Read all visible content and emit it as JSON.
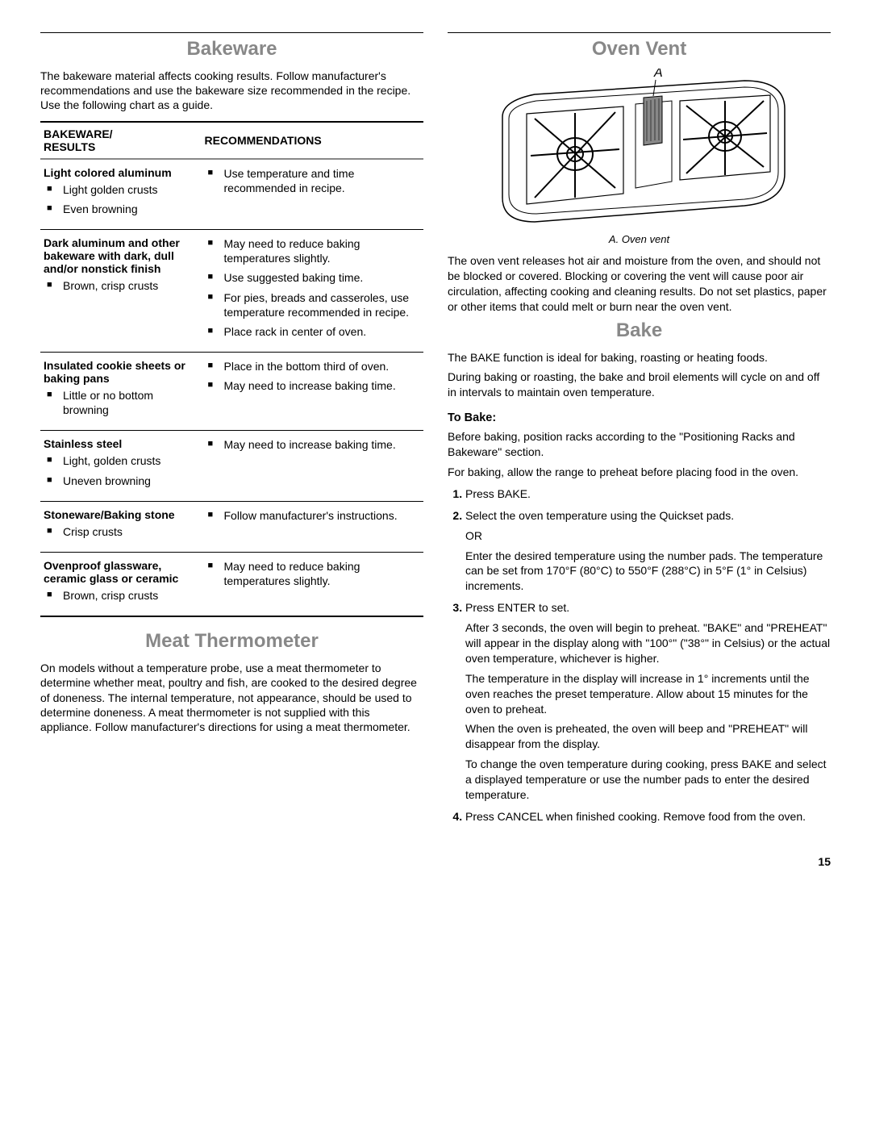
{
  "left": {
    "bakeware_title": "Bakeware",
    "bakeware_intro": "The bakeware material affects cooking results. Follow manufacturer's recommendations and use the bakeware size recommended in the recipe. Use the following chart as a guide.",
    "table_headers": {
      "col1": "BAKEWARE/\nRESULTS",
      "col2": "RECOMMENDATIONS"
    },
    "rows": [
      {
        "material": "Light colored aluminum",
        "results": [
          "Light golden crusts",
          "Even browning"
        ],
        "recs": [
          "Use temperature and time recommended in recipe."
        ]
      },
      {
        "material": "Dark aluminum and other bakeware with dark, dull and/or nonstick finish",
        "results": [
          "Brown, crisp crusts"
        ],
        "recs": [
          "May need to reduce baking temperatures slightly.",
          "Use suggested baking time.",
          "For pies, breads and casseroles, use temperature recommended in recipe.",
          "Place rack in center of oven."
        ]
      },
      {
        "material": "Insulated cookie sheets or baking pans",
        "results": [
          "Little or no bottom browning"
        ],
        "recs": [
          "Place in the bottom third of oven.",
          "May need to increase baking time."
        ]
      },
      {
        "material": "Stainless steel",
        "results": [
          "Light, golden crusts",
          "Uneven browning"
        ],
        "recs": [
          "May need to increase baking time."
        ]
      },
      {
        "material": "Stoneware/Baking stone",
        "results": [
          "Crisp crusts"
        ],
        "recs": [
          "Follow manufacturer's instructions."
        ]
      },
      {
        "material": "Ovenproof glassware, ceramic glass or ceramic",
        "results": [
          "Brown, crisp crusts"
        ],
        "recs": [
          "May need to reduce baking temperatures slightly."
        ]
      }
    ],
    "meat_title": "Meat Thermometer",
    "meat_text": "On models without a temperature probe, use a meat thermometer to determine whether meat, poultry and fish, are cooked to the desired degree of doneness. The internal temperature, not appearance, should be used to determine doneness. A meat thermometer is not supplied with this appliance. Follow manufacturer's directions for using a meat thermometer."
  },
  "right": {
    "oven_vent_title": "Oven Vent",
    "vent_label_A": "A",
    "vent_caption": "A. Oven vent",
    "vent_text": "The oven vent releases hot air and moisture from the oven, and should not be blocked or covered. Blocking or covering the vent will cause poor air circulation, affecting cooking and cleaning results. Do not set plastics, paper or other items that could melt or burn near the oven vent.",
    "bake_title": "Bake",
    "bake_text1": "The BAKE function is ideal for baking, roasting or heating foods.",
    "bake_text2": "During baking or roasting, the bake and broil elements will cycle on and off in intervals to maintain oven temperature.",
    "to_bake_title": "To Bake:",
    "bake_pre1": "Before baking, position racks according to the \"Positioning Racks and Bakeware\" section.",
    "bake_pre2": "For baking, allow the range to preheat before placing food in the oven.",
    "steps": [
      {
        "main": "Press BAKE."
      },
      {
        "main": "Select the oven temperature using the Quickset pads.",
        "sub": [
          "OR",
          "Enter the desired temperature using the number pads. The temperature can be set from 170°F (80°C) to 550°F (288°C) in 5°F (1° in Celsius) increments."
        ]
      },
      {
        "main": "Press ENTER to set.",
        "sub": [
          "After 3 seconds, the oven will begin to preheat. \"BAKE\" and \"PREHEAT\" will appear in the display along with \"100°\" (\"38°\" in Celsius) or the actual oven temperature, whichever is higher.",
          "The temperature in the display will increase in 1° increments until the oven reaches the preset temperature. Allow about 15 minutes for the oven to preheat.",
          "When the oven is preheated, the oven will beep and \"PREHEAT\" will disappear from the display.",
          "To change the oven temperature during cooking, press BAKE and select a displayed temperature or use the number pads to enter the desired temperature."
        ]
      },
      {
        "main": "Press CANCEL when finished cooking. Remove food from the oven."
      }
    ]
  },
  "page_number": "15",
  "svg": {
    "outer_stroke": "#000",
    "grate_stroke": "#000",
    "vent_fill": "#888"
  }
}
